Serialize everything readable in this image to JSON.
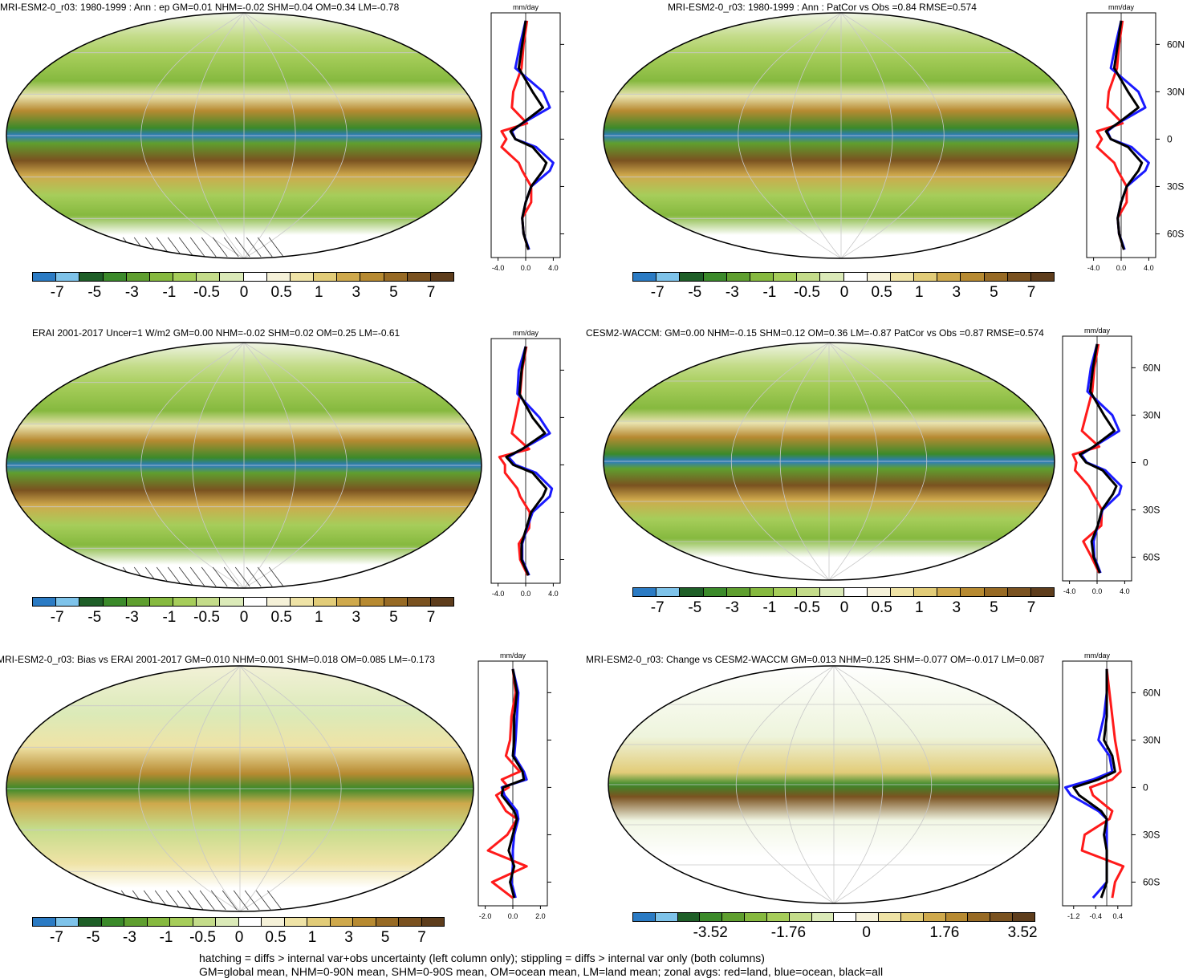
{
  "panels": [
    {
      "title": "MRI-ESM2-0_r03: 1980-1999 : Ann : ep GM=0.01 NHM=-0.02 SHM=0.04 OM=0.34 LM=-0.78",
      "colorbar": [
        "-7",
        "-5",
        "-3",
        "-1",
        "-0.5",
        "0",
        "0.5",
        "1",
        "3",
        "5",
        "7"
      ],
      "map_style": "mean",
      "hatching": true
    },
    {
      "title": "MRI-ESM2-0_r03: 1980-1999 : Ann : PatCor vs Obs =0.84 RMSE=0.574",
      "colorbar": [
        "-7",
        "-5",
        "-3",
        "-1",
        "-0.5",
        "0",
        "0.5",
        "1",
        "3",
        "5",
        "7"
      ],
      "map_style": "mean",
      "hatching": false
    },
    {
      "title": "ERAI 2001-2017 Uncer=1 W/m2 GM=0.00 NHM=-0.02 SHM=0.02 OM=0.25 LM=-0.61",
      "colorbar": [
        "-7",
        "-5",
        "-3",
        "-1",
        "-0.5",
        "0",
        "0.5",
        "1",
        "3",
        "5",
        "7"
      ],
      "map_style": "mean",
      "hatching": true
    },
    {
      "title": "CESM2-WACCM: GM=0.00 NHM=-0.15 SHM=0.12 OM=0.36 LM=-0.87 PatCor vs Obs =0.87 RMSE=0.574",
      "colorbar": [
        "-7",
        "-5",
        "-3",
        "-1",
        "-0.5",
        "0",
        "0.5",
        "1",
        "3",
        "5",
        "7"
      ],
      "map_style": "mean",
      "hatching": false
    },
    {
      "title": "MRI-ESM2-0_r03: Bias vs ERAI 2001-2017 GM=0.010 NHM=0.001 SHM=0.018 OM=0.085 LM=-0.173",
      "colorbar": [
        "-7",
        "-5",
        "-3",
        "-1",
        "-0.5",
        "0",
        "0.5",
        "1",
        "3",
        "5",
        "7"
      ],
      "map_style": "bias",
      "hatching": true
    },
    {
      "title": "MRI-ESM2-0_r03: Change vs CESM2-WACCM GM=0.013 NHM=0.125 SHM=-0.077 OM=-0.017 LM=0.087",
      "colorbar": [
        "-3.52",
        "-1.76",
        "0",
        "1.76",
        "3.52"
      ],
      "map_style": "change",
      "hatching": false
    }
  ],
  "colors": {
    "palette": [
      "#2b7bc4",
      "#7ec3ea",
      "#1f5f28",
      "#3b8a2a",
      "#5f9f2f",
      "#86b93f",
      "#a6cd5a",
      "#c4dc8a",
      "#dbeab8",
      "#ffffff",
      "#f5f1d8",
      "#efe3a6",
      "#e2cc78",
      "#cfa94c",
      "#b78a31",
      "#976a24",
      "#7a5220",
      "#5e3d1c"
    ],
    "land_series": "#ff1a1a",
    "ocean_series": "#1a1aff",
    "all_series": "#000000"
  },
  "zonal_unit": "mm/day",
  "zonal_panels": [
    {
      "xticks": [
        "-4.0",
        "0.0",
        "4.0"
      ],
      "xlim": [
        -5,
        5
      ]
    },
    {
      "xticks": [
        "-4.0",
        "0.0",
        "4.0"
      ],
      "xlim": [
        -5,
        5
      ]
    },
    {
      "xticks": [
        "-4.0",
        "0.0",
        "4.0"
      ],
      "xlim": [
        -5,
        5
      ]
    },
    {
      "xticks": [
        "-4.0",
        "0.0",
        "4.0"
      ],
      "xlim": [
        -5,
        5
      ]
    },
    {
      "xticks": [
        "-2.0",
        "0.0",
        "2.0"
      ],
      "xlim": [
        -2.5,
        2.5
      ]
    },
    {
      "xticks": [
        "-1.2",
        "-0.4",
        "0.4"
      ],
      "xlim": [
        -1.6,
        0.9
      ]
    }
  ],
  "lat_ticks": [
    "60N",
    "30N",
    "0",
    "30S",
    "60S"
  ],
  "footer": {
    "line1": "hatching = diffs > internal var+obs uncertainty (left column only); stippling = diffs > internal var only (both columns)",
    "line2": "GM=global mean, NHM=0-90N mean, SHM=0-90S mean, OM=ocean mean, LM=land mean; zonal avgs: red=land, blue=ocean, black=all"
  },
  "chart_data": [
    {
      "type": "line",
      "title": "MRI-ESM2-0_r03: 1980-1999 : Ann : ep",
      "xlabel": "mm/day",
      "ylabel": "",
      "ylim": [
        -75,
        80
      ],
      "series": [
        {
          "lat": [
            75,
            60,
            45,
            30,
            20,
            10,
            5,
            0,
            -5,
            -15,
            -20,
            -30,
            -40,
            -50,
            -60,
            -70
          ],
          "land": [
            0.2,
            -0.3,
            -0.6,
            -1.8,
            -2.0,
            0.2,
            -3.5,
            -2.8,
            -3.5,
            -1.0,
            -0.5,
            0.8,
            0.8,
            -0.5,
            -0.3,
            0.4
          ],
          "ocean": [
            0.0,
            -0.8,
            -1.5,
            2.5,
            3.5,
            -0.5,
            -2.0,
            -1.5,
            1.5,
            4.0,
            3.5,
            0.8,
            0.0,
            -0.5,
            -0.3,
            0.5
          ],
          "all": [
            0.0,
            -0.5,
            -1.0,
            1.0,
            2.5,
            -0.5,
            -2.2,
            -1.5,
            1.0,
            3.0,
            2.5,
            0.8,
            0.0,
            -0.5,
            -0.3,
            0.4
          ]
        }
      ]
    },
    {
      "type": "line",
      "title": "MRI-ESM2-0_r03: 1980-1999 : Ann",
      "xlabel": "mm/day",
      "ylabel": "",
      "ylim": [
        -75,
        80
      ],
      "series": [
        {
          "lat": [
            75,
            60,
            45,
            30,
            20,
            10,
            5,
            0,
            -5,
            -15,
            -20,
            -30,
            -40,
            -50,
            -60,
            -70
          ],
          "land": [
            0.2,
            -0.3,
            -0.6,
            -1.8,
            -2.0,
            0.2,
            -3.5,
            -2.8,
            -3.5,
            -1.0,
            -0.5,
            0.8,
            0.8,
            -0.5,
            -0.3,
            0.4
          ],
          "ocean": [
            0.0,
            -0.8,
            -1.5,
            2.5,
            3.5,
            -0.5,
            -2.0,
            -1.5,
            1.5,
            4.0,
            3.5,
            0.8,
            0.0,
            -0.5,
            -0.3,
            0.5
          ],
          "all": [
            0.0,
            -0.5,
            -1.0,
            1.0,
            2.5,
            -0.5,
            -2.2,
            -1.5,
            1.0,
            3.0,
            2.5,
            0.8,
            0.0,
            -0.5,
            -0.3,
            0.4
          ]
        }
      ]
    },
    {
      "type": "line",
      "title": "ERAI 2001-2017",
      "xlabel": "mm/day",
      "ylabel": "",
      "ylim": [
        -75,
        80
      ],
      "series": [
        {
          "lat": [
            75,
            60,
            45,
            30,
            20,
            10,
            5,
            0,
            -5,
            -15,
            -20,
            -30,
            -40,
            -50,
            -60,
            -70
          ],
          "land": [
            0.1,
            -0.5,
            -0.8,
            -1.5,
            -2.0,
            0.5,
            -3.8,
            -3.0,
            -3.0,
            -1.2,
            -0.8,
            0.6,
            0.5,
            -1.0,
            -0.8,
            0.3
          ],
          "ocean": [
            0.0,
            -1.0,
            -1.2,
            2.0,
            3.5,
            -0.5,
            -2.5,
            -1.5,
            1.5,
            3.8,
            3.5,
            1.0,
            0.2,
            -0.5,
            -0.5,
            0.5
          ],
          "all": [
            0.0,
            -0.6,
            -0.9,
            1.0,
            2.8,
            -0.5,
            -2.8,
            -1.8,
            1.0,
            3.0,
            2.5,
            0.8,
            0.1,
            -0.6,
            -0.6,
            0.4
          ]
        }
      ]
    },
    {
      "type": "line",
      "title": "CESM2-WACCM",
      "xlabel": "mm/day",
      "ylabel": "",
      "ylim": [
        -75,
        80
      ],
      "series": [
        {
          "lat": [
            75,
            60,
            45,
            30,
            20,
            10,
            5,
            0,
            -5,
            -15,
            -20,
            -30,
            -40,
            -50,
            -60,
            -70
          ],
          "land": [
            0.2,
            -0.4,
            -0.7,
            -1.6,
            -2.2,
            0.3,
            -3.5,
            -3.0,
            -3.2,
            -1.2,
            -0.6,
            0.7,
            0.6,
            -2.0,
            -0.8,
            0.3
          ],
          "ocean": [
            0.0,
            -0.9,
            -1.4,
            2.2,
            3.2,
            -0.5,
            -2.3,
            -1.5,
            1.2,
            3.5,
            3.2,
            0.8,
            0.1,
            -0.5,
            -0.4,
            0.5
          ],
          "all": [
            0.0,
            -0.6,
            -1.0,
            1.0,
            2.5,
            -0.5,
            -2.5,
            -1.6,
            0.8,
            2.8,
            2.3,
            0.7,
            0.1,
            -0.8,
            -0.5,
            0.4
          ]
        }
      ]
    },
    {
      "type": "line",
      "title": "MRI-ESM2-0_r03: Bias vs ERAI 2001-2017",
      "xlabel": "mm/day",
      "ylabel": "",
      "ylim": [
        -75,
        80
      ],
      "series": [
        {
          "lat": [
            75,
            60,
            45,
            30,
            20,
            10,
            5,
            0,
            -5,
            -15,
            -20,
            -30,
            -40,
            -50,
            -60,
            -70
          ],
          "land": [
            0.0,
            0.2,
            -0.1,
            -0.2,
            -0.5,
            0.5,
            -0.8,
            -0.3,
            -1.2,
            -0.5,
            0.3,
            -0.4,
            -1.8,
            1.0,
            -1.5,
            0.0
          ],
          "ocean": [
            0.0,
            0.4,
            0.3,
            0.2,
            0.1,
            0.8,
            1.0,
            -0.8,
            -0.6,
            0.3,
            0.4,
            0.1,
            0.0,
            0.0,
            -0.1,
            0.2
          ],
          "all": [
            0.0,
            0.3,
            0.1,
            0.1,
            0.0,
            0.7,
            0.8,
            -0.7,
            -0.8,
            0.1,
            0.3,
            0.0,
            -0.3,
            0.1,
            -0.2,
            0.1
          ]
        }
      ]
    },
    {
      "type": "line",
      "title": "MRI-ESM2-0_r03: Change vs CESM2-WACCM",
      "xlabel": "mm/day",
      "ylabel": "",
      "ylim": [
        -75,
        80
      ],
      "series": [
        {
          "lat": [
            75,
            60,
            45,
            30,
            20,
            10,
            5,
            0,
            -5,
            -15,
            -20,
            -30,
            -40,
            -50,
            -60,
            -70
          ],
          "land": [
            0.0,
            0.1,
            0.2,
            0.3,
            0.4,
            0.5,
            0.2,
            -0.6,
            -0.5,
            0.2,
            0.1,
            -0.8,
            -0.9,
            0.6,
            0.3,
            0.2
          ],
          "ocean": [
            0.0,
            0.0,
            -0.1,
            -0.3,
            0.1,
            0.2,
            -0.5,
            -1.5,
            -1.3,
            -0.3,
            0.0,
            0.0,
            0.0,
            0.0,
            0.0,
            -0.5
          ],
          "all": [
            0.0,
            0.0,
            0.0,
            -0.1,
            0.2,
            0.3,
            -0.3,
            -1.2,
            -1.0,
            -0.2,
            0.0,
            -0.1,
            0.0,
            0.0,
            0.0,
            -0.2
          ]
        }
      ]
    }
  ]
}
